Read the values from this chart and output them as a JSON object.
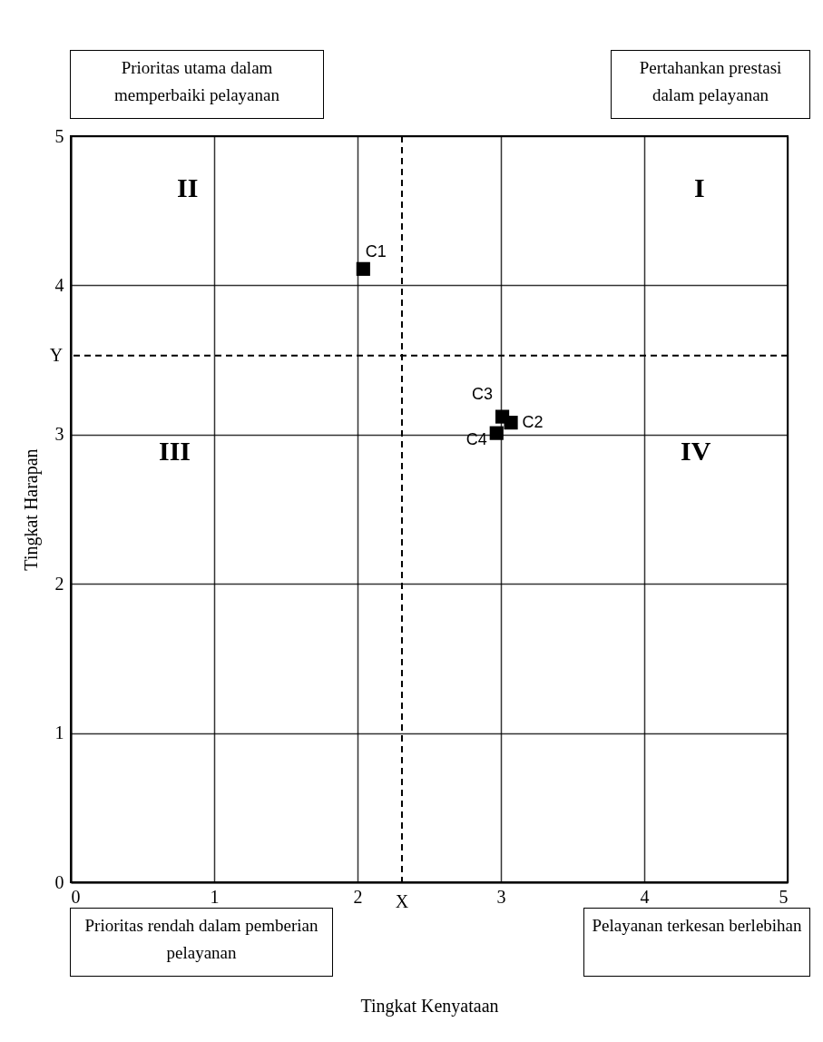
{
  "chart_data": {
    "type": "scatter",
    "xlabel": "Tingkat Kenyataan",
    "ylabel": "Tingkat Harapan",
    "xlim": [
      0,
      5
    ],
    "ylim": [
      0,
      5
    ],
    "xticks": [
      0,
      1,
      2,
      3,
      4,
      5
    ],
    "yticks": [
      0,
      1,
      2,
      3,
      4,
      5
    ],
    "grid": true,
    "legend": false,
    "marker": "square",
    "series": [
      {
        "name": "C1",
        "color": "#000000",
        "x": [
          2.04
        ],
        "values": [
          4.11
        ]
      },
      {
        "name": "C2",
        "color": "#000000",
        "x": [
          3.07
        ],
        "values": [
          3.08
        ]
      },
      {
        "name": "C3",
        "color": "#000000",
        "x": [
          3.01
        ],
        "values": [
          3.12
        ]
      },
      {
        "name": "C4",
        "color": "#000000",
        "x": [
          2.97
        ],
        "values": [
          3.01
        ]
      }
    ],
    "ref_lines": [
      {
        "axis": "x",
        "value": 2.31,
        "label": "X",
        "line_style": "dashed"
      },
      {
        "axis": "y",
        "value": 3.53,
        "label": "Y",
        "line_style": "dashed"
      }
    ],
    "annotations": [
      "Prioritas utama dalam memperbaiki pelayanan",
      "Pertahankan prestasi dalam pelayanan",
      "Prioritas rendah dalam pemberian pelayanan",
      "Pelayanan terkesan berlebihan",
      "II",
      "I",
      "III",
      "IV"
    ]
  }
}
